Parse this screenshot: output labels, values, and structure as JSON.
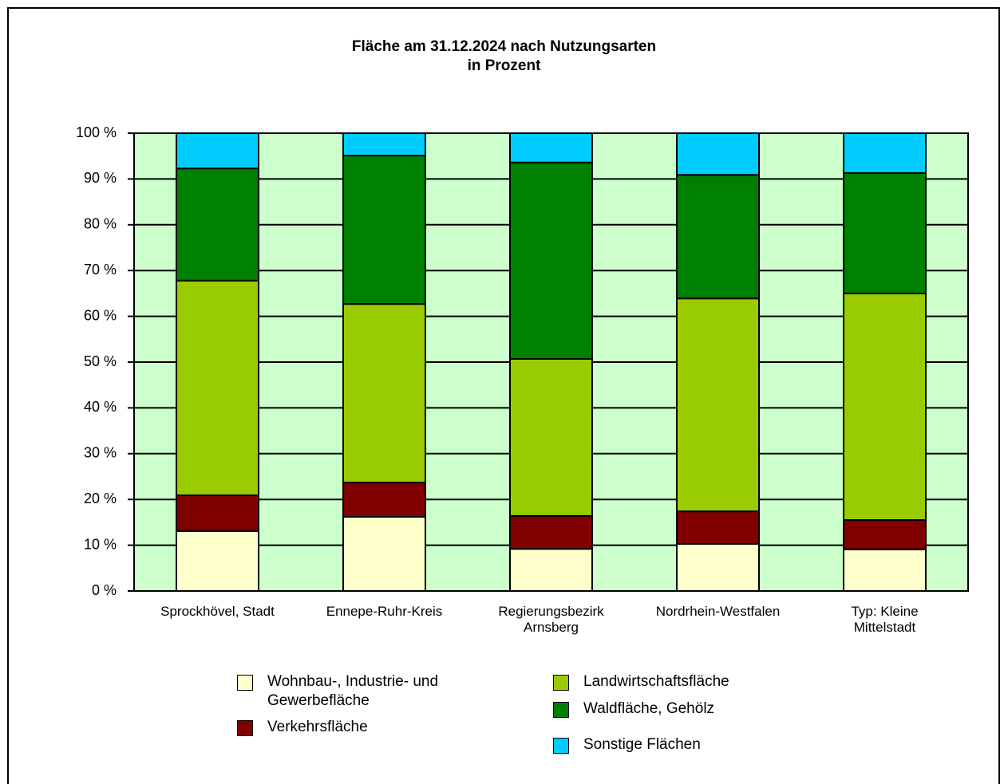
{
  "chart_data": {
    "type": "stacked_bar",
    "title": "Fläche am 31.12.2024 nach Nutzungsarten\nin Prozent",
    "categories": [
      "Sprockhövel, Stadt",
      "Ennepe-Ruhr-Kreis",
      "Regierungsbezirk\nArnsberg",
      "Nordrhein-Westfalen",
      "Typ: Kleine\nMittelstadt"
    ],
    "series": [
      {
        "name": "Wohnbau-, Industrie- und\nGewerbefläche",
        "color": "#ffffcc",
        "values": [
          13.1,
          16.2,
          9.2,
          10.3,
          9.1
        ]
      },
      {
        "name": "Verkehrsfläche",
        "color": "#800000",
        "values": [
          7.8,
          7.5,
          7.2,
          7.1,
          6.4
        ]
      },
      {
        "name": "Landwirtschaftsfläche",
        "color": "#99cc00",
        "values": [
          46.9,
          39.0,
          34.3,
          46.5,
          49.5
        ]
      },
      {
        "name": "Waldfläche, Gehölz",
        "color": "#008000",
        "values": [
          24.5,
          32.4,
          42.9,
          27.0,
          26.3
        ]
      },
      {
        "name": "Sonstige Flächen",
        "color": "#00ccff",
        "values": [
          7.7,
          4.9,
          6.4,
          9.1,
          8.7
        ]
      }
    ],
    "ylim": [
      0,
      100
    ],
    "yticks": [
      {
        "value": 0,
        "label": "0 %"
      },
      {
        "value": 10,
        "label": "10 %"
      },
      {
        "value": 20,
        "label": "20 %"
      },
      {
        "value": 30,
        "label": "30 %"
      },
      {
        "value": 40,
        "label": "40 %"
      },
      {
        "value": 50,
        "label": "50 %"
      },
      {
        "value": 60,
        "label": "60 %"
      },
      {
        "value": 70,
        "label": "70 %"
      },
      {
        "value": 80,
        "label": "80 %"
      },
      {
        "value": 90,
        "label": "90 %"
      },
      {
        "value": 100,
        "label": "100 %"
      }
    ],
    "grid": true,
    "plot_background": "#ccffcc"
  }
}
